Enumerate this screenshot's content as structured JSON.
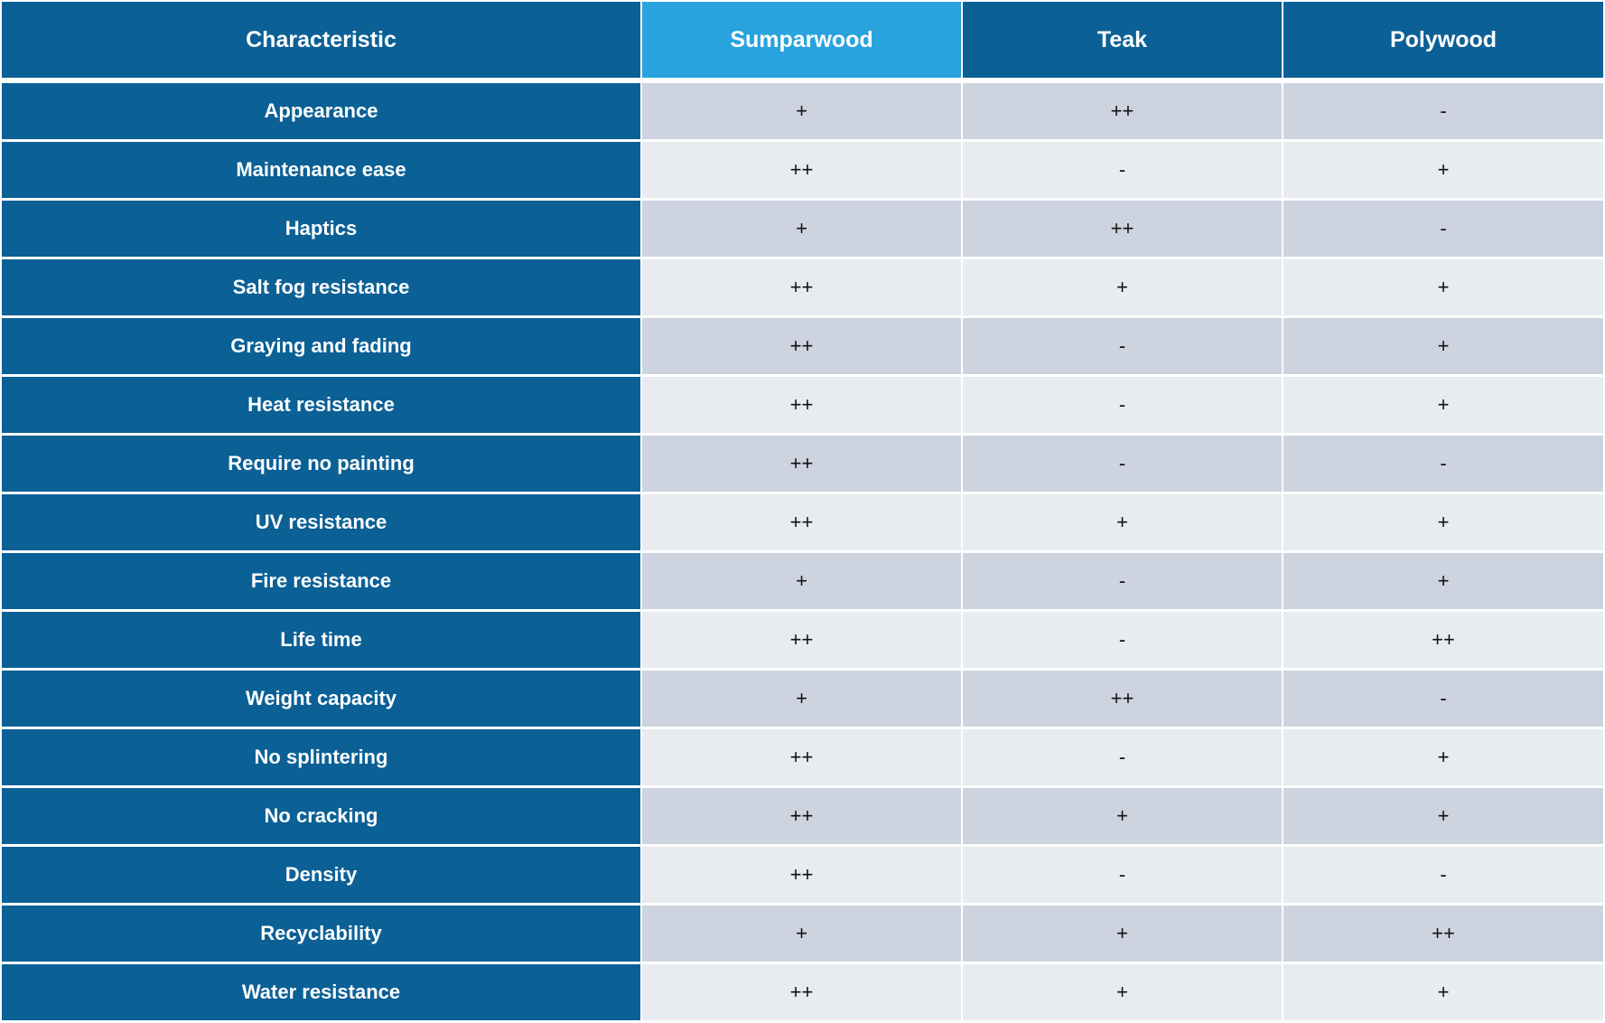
{
  "table": {
    "headers": [
      "Characteristic",
      "Sumparwood",
      "Teak",
      "Polywood"
    ],
    "rows": [
      {
        "label": "Appearance",
        "values": [
          "+",
          "++",
          "-"
        ]
      },
      {
        "label": "Maintenance ease",
        "values": [
          "++",
          "-",
          "+"
        ]
      },
      {
        "label": "Haptics",
        "values": [
          "+",
          "++",
          "-"
        ]
      },
      {
        "label": "Salt fog resistance",
        "values": [
          "++",
          "+",
          "+"
        ]
      },
      {
        "label": "Graying and fading",
        "values": [
          "++",
          "-",
          "+"
        ]
      },
      {
        "label": "Heat resistance",
        "values": [
          "++",
          "-",
          "+"
        ]
      },
      {
        "label": "Require no painting",
        "values": [
          "++",
          "-",
          "-"
        ]
      },
      {
        "label": "UV resistance",
        "values": [
          "++",
          "+",
          "+"
        ]
      },
      {
        "label": "Fire resistance",
        "values": [
          "+",
          "-",
          "+"
        ]
      },
      {
        "label": "Life time",
        "values": [
          "++",
          "-",
          "++"
        ]
      },
      {
        "label": "Weight capacity",
        "values": [
          "+",
          "++",
          "-"
        ]
      },
      {
        "label": "No splintering",
        "values": [
          "++",
          "-",
          "+"
        ]
      },
      {
        "label": "No cracking",
        "values": [
          "++",
          "+",
          "+"
        ]
      },
      {
        "label": "Density",
        "values": [
          "++",
          "-",
          "-"
        ]
      },
      {
        "label": "Recyclability",
        "values": [
          "+",
          "+",
          "++"
        ]
      },
      {
        "label": "Water resistance",
        "values": [
          "++",
          "+",
          "+"
        ]
      }
    ]
  },
  "colors": {
    "header_dark": "#0b6096",
    "header_highlight": "#29a3de",
    "row_band_dark": "#cdd3df",
    "row_band_light": "#e8ebf0"
  }
}
